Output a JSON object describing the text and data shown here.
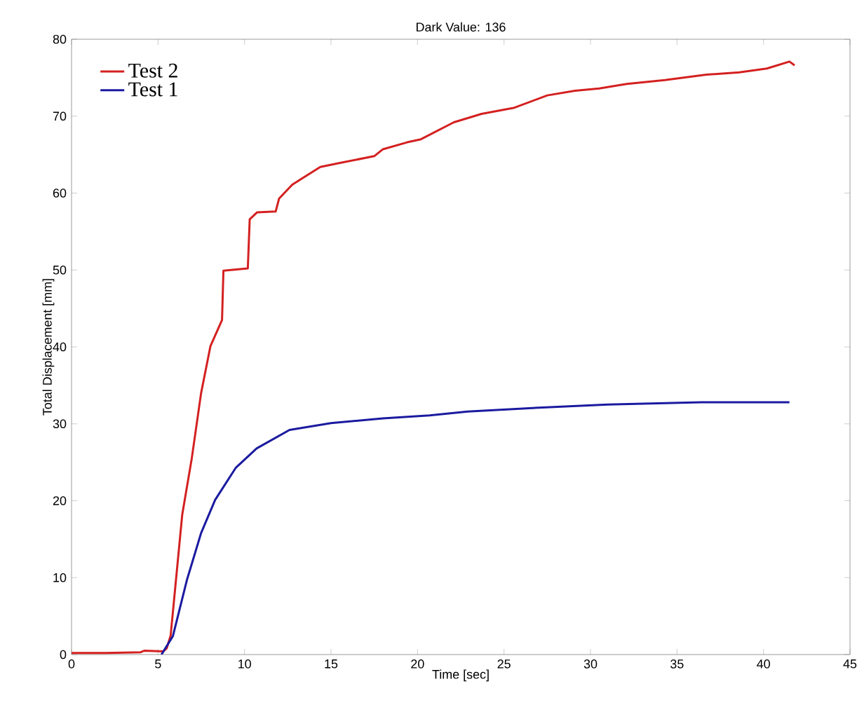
{
  "chart_data": {
    "type": "line",
    "title": "Dark Value: 136",
    "xlabel": "Time [sec]",
    "ylabel": "Total Displacement [mm]",
    "xlim": [
      0,
      45
    ],
    "xticks": [
      0,
      5,
      10,
      15,
      20,
      25,
      30,
      35,
      40,
      45
    ],
    "ylim": [
      0,
      80
    ],
    "yticks": [
      0,
      10,
      20,
      30,
      40,
      50,
      60,
      70,
      80
    ],
    "grid": false,
    "legend": "top left",
    "marker": "none",
    "line_style": "solid",
    "series": [
      {
        "name": "Test 2",
        "color": "#d42020",
        "x": [
          0,
          2,
          4,
          4.2,
          5.3,
          5.5,
          5.73,
          6.4,
          6.95,
          7.49,
          8.03,
          8.7,
          8.78,
          10.19,
          10.3,
          10.73,
          11.8,
          12.0,
          12.76,
          14.38,
          15.46,
          17.5,
          18.0,
          19.4,
          20.2,
          22.1,
          23.7,
          25.6,
          27.5,
          29.1,
          30.5,
          32.1,
          34.3,
          36.7,
          38.6,
          40.2,
          41.5,
          41.8
        ],
        "values": [
          0.2,
          0.2,
          0.3,
          0.5,
          0.4,
          0.8,
          2.5,
          18.2,
          25.5,
          34,
          40.1,
          43.5,
          49.9,
          50.2,
          56.6,
          57.5,
          57.6,
          59.3,
          61.1,
          63.4,
          63.9,
          64.8,
          65.7,
          66.6,
          67.0,
          69.2,
          70.3,
          71.1,
          72.7,
          73.3,
          73.6,
          74.2,
          74.7,
          75.4,
          75.7,
          76.2,
          77.1,
          76.6
        ]
      },
      {
        "name": "Test 1",
        "color": "#1a1aa0",
        "x": [
          5.2,
          5.86,
          6.67,
          7.49,
          8.3,
          9.5,
          10.7,
          12.6,
          15.0,
          18.0,
          20.7,
          22.9,
          27.0,
          31.0,
          36.4,
          39.9,
          41.5
        ],
        "values": [
          0,
          2.4,
          9.7,
          15.8,
          20.1,
          24.3,
          26.8,
          29.2,
          30.1,
          30.7,
          31.1,
          31.6,
          32.1,
          32.5,
          32.8,
          32.8,
          32.8
        ]
      }
    ]
  }
}
